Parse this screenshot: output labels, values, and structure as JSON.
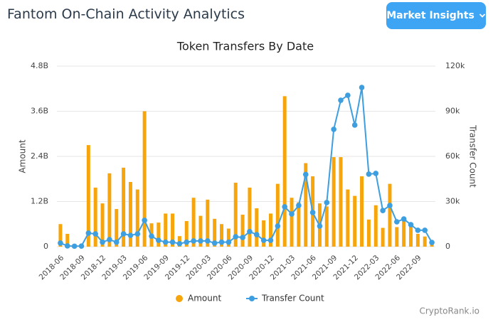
{
  "header": {
    "title": "Fantom On-Chain Activity Analytics",
    "button": "Market Insights"
  },
  "footer": {
    "watermark": "CryptoRank.io"
  },
  "chart_data": {
    "type": "combo",
    "title": "Token Transfers By Date",
    "y_label": "Amount",
    "y2_label": "Transfer Count",
    "categories": [
      "2018-06",
      null,
      null,
      "2018-09",
      null,
      null,
      "2018-12",
      null,
      null,
      "2019-03",
      null,
      null,
      "2019-06",
      null,
      null,
      "2019-09",
      null,
      null,
      "2019-12",
      null,
      null,
      "2020-03",
      null,
      null,
      "2020-06",
      null,
      null,
      "2020-09",
      null,
      null,
      "2020-12",
      null,
      null,
      "2021-03",
      null,
      null,
      "2021-06",
      null,
      null,
      "2021-09",
      null,
      null,
      "2021-12",
      null,
      null,
      "2022-03",
      null,
      null,
      "2022-06",
      null,
      null,
      "2022-09",
      null,
      null
    ],
    "series": [
      {
        "name": "Amount",
        "type": "bar",
        "axis": "y",
        "color": "#f7a50c",
        "values": [
          600000000,
          340000000,
          50000000,
          50000000,
          2700000000,
          1570000000,
          1150000000,
          1950000000,
          1000000000,
          2100000000,
          1720000000,
          1520000000,
          3600000000,
          620000000,
          640000000,
          880000000,
          880000000,
          280000000,
          680000000,
          1300000000,
          820000000,
          1250000000,
          740000000,
          600000000,
          480000000,
          1700000000,
          850000000,
          1570000000,
          1020000000,
          700000000,
          880000000,
          1670000000,
          4000000000,
          1300000000,
          1180000000,
          2220000000,
          1870000000,
          1150000000,
          1070000000,
          2380000000,
          2380000000,
          1520000000,
          1350000000,
          1870000000,
          720000000,
          1100000000,
          500000000,
          1670000000,
          520000000,
          700000000,
          570000000,
          340000000,
          270000000,
          150000000
        ]
      },
      {
        "name": "Transfer Count",
        "type": "line",
        "axis": "y2",
        "color": "#3d9ee0",
        "values": [
          2400,
          500,
          300,
          400,
          9000,
          8500,
          3000,
          4700,
          3000,
          8500,
          7500,
          8500,
          17500,
          7000,
          4200,
          3000,
          3000,
          2000,
          3000,
          3800,
          3800,
          3800,
          2400,
          3000,
          3000,
          6600,
          6100,
          10000,
          8000,
          4200,
          4200,
          13700,
          26500,
          21700,
          27400,
          48000,
          22700,
          13700,
          29300,
          78000,
          97300,
          100600,
          80800,
          105800,
          48200,
          48700,
          24000,
          27400,
          16500,
          18400,
          14600,
          10900,
          10900,
          2800
        ]
      }
    ],
    "ylim": [
      0,
      4800000000
    ],
    "yticks": [
      0,
      {
        "value": 1200000000,
        "label": "1.2B"
      },
      {
        "value": 2400000000,
        "label": "2.4B"
      },
      {
        "value": 3600000000,
        "label": "3.6B"
      },
      {
        "value": 4800000000,
        "label": "4.8B"
      }
    ],
    "y2lim": [
      0,
      120000
    ],
    "y2ticks": [
      0,
      {
        "value": 30000,
        "label": "30k"
      },
      {
        "value": 60000,
        "label": "60k"
      },
      {
        "value": 90000,
        "label": "90k"
      },
      {
        "value": 120000,
        "label": "120k"
      }
    ],
    "grid": true,
    "legend": "bottom"
  }
}
